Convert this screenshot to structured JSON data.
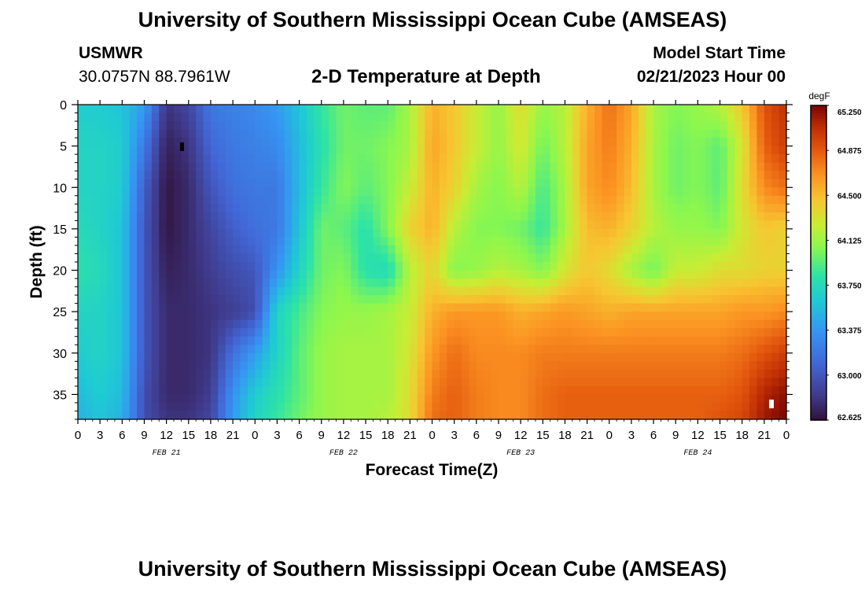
{
  "titles": {
    "main": "University of Southern Mississippi Ocean Cube (AMSEAS)",
    "bottom_repeat": "University of Southern Mississippi Ocean Cube (AMSEAS)"
  },
  "station": {
    "name": "USMWR",
    "coords": "30.0757N  88.7961W"
  },
  "model": {
    "label": "Model Start Time",
    "value": "02/21/2023 Hour 00"
  },
  "chart_data": {
    "type": "heatmap",
    "title": "2-D Temperature at Depth",
    "xlabel": "Forecast Time(Z)",
    "ylabel": "Depth (ft)",
    "units": "degF",
    "x_tick_labels": [
      "0",
      "3",
      "6",
      "9",
      "12",
      "15",
      "18",
      "21",
      "0",
      "3",
      "6",
      "9",
      "12",
      "15",
      "18",
      "21",
      "0",
      "3",
      "6",
      "9",
      "12",
      "15",
      "18",
      "21",
      "0",
      "3",
      "6",
      "9",
      "12",
      "15",
      "18",
      "21",
      "0"
    ],
    "date_labels": [
      {
        "label": "FEB 21",
        "hour": 12
      },
      {
        "label": "FEB 22",
        "hour": 36
      },
      {
        "label": "FEB 23",
        "hour": 60
      },
      {
        "label": "FEB 24",
        "hour": 84
      }
    ],
    "xlim": [
      0,
      96
    ],
    "ylim": [
      0,
      38
    ],
    "y_ticks": [
      0,
      5,
      10,
      15,
      20,
      25,
      30,
      35
    ],
    "y_tick_labels": [
      "0",
      "5",
      "10",
      "15",
      "20",
      "25",
      "30",
      "35"
    ],
    "colorbar": {
      "min": 62.625,
      "max": 65.25,
      "tick_values": [
        65.25,
        64.875,
        64.5,
        64.125,
        63.75,
        63.375,
        63.0,
        62.625
      ],
      "tick_labels": [
        "65.250",
        "64.875",
        "64.500",
        "64.125",
        "63.750",
        "63.375",
        "63.000",
        "62.625"
      ]
    },
    "field": {
      "x_hours": [
        0,
        3,
        6,
        9,
        12,
        15,
        18,
        21,
        24,
        27,
        30,
        33,
        36,
        39,
        42,
        45,
        48,
        51,
        54,
        57,
        60,
        63,
        66,
        69,
        72,
        75,
        78,
        81,
        84,
        87,
        90,
        93,
        96
      ],
      "depths_ft": [
        0,
        5,
        10,
        15,
        20,
        25,
        30,
        35,
        38
      ],
      "temps_degF": [
        [
          63.65,
          63.65,
          63.6,
          63.4,
          62.8,
          62.9,
          63.2,
          63.25,
          63.3,
          63.4,
          63.6,
          63.85,
          64.0,
          63.95,
          63.95,
          64.15,
          64.55,
          64.45,
          64.25,
          64.1,
          64.35,
          64.1,
          64.2,
          64.55,
          64.8,
          64.6,
          64.15,
          64.05,
          64.1,
          64.2,
          64.45,
          64.9,
          65.05
        ],
        [
          63.7,
          63.7,
          63.65,
          63.2,
          62.7,
          62.8,
          63.1,
          63.2,
          63.25,
          63.3,
          63.55,
          63.8,
          64.0,
          64.0,
          64.05,
          64.15,
          64.6,
          64.45,
          64.25,
          64.1,
          64.3,
          64.0,
          64.2,
          64.6,
          64.75,
          64.55,
          64.15,
          64.0,
          64.05,
          63.95,
          64.3,
          64.85,
          65.0
        ],
        [
          63.7,
          63.7,
          63.65,
          63.05,
          62.65,
          62.75,
          63.0,
          63.15,
          63.2,
          63.2,
          63.55,
          63.85,
          64.05,
          63.95,
          64.05,
          64.25,
          64.55,
          64.4,
          64.15,
          64.05,
          64.2,
          63.9,
          64.15,
          64.6,
          64.7,
          64.5,
          64.15,
          64.0,
          64.05,
          63.95,
          64.35,
          64.7,
          64.8
        ],
        [
          63.75,
          63.7,
          63.6,
          63.0,
          62.65,
          62.75,
          62.9,
          63.05,
          63.15,
          63.2,
          63.6,
          64.0,
          63.95,
          63.8,
          64.05,
          64.4,
          64.55,
          64.2,
          64.05,
          64.05,
          64.0,
          63.85,
          64.15,
          64.5,
          64.55,
          64.4,
          64.2,
          64.1,
          64.1,
          64.05,
          64.3,
          64.45,
          64.4
        ],
        [
          63.8,
          63.75,
          63.6,
          63.0,
          62.7,
          62.75,
          62.85,
          62.95,
          63.0,
          63.35,
          63.7,
          64.0,
          64.05,
          63.8,
          63.75,
          64.2,
          64.4,
          64.05,
          64.1,
          64.2,
          64.15,
          64.05,
          64.3,
          64.45,
          64.35,
          64.15,
          64.0,
          64.25,
          64.25,
          64.35,
          64.35,
          64.4,
          64.4
        ],
        [
          63.7,
          63.7,
          63.6,
          63.0,
          62.75,
          62.75,
          62.8,
          62.85,
          62.95,
          63.7,
          63.9,
          64.05,
          64.1,
          64.1,
          64.15,
          64.25,
          64.55,
          64.65,
          64.65,
          64.65,
          64.55,
          64.6,
          64.65,
          64.6,
          64.55,
          64.6,
          64.6,
          64.6,
          64.6,
          64.6,
          64.65,
          64.65,
          64.7
        ],
        [
          63.65,
          63.7,
          63.6,
          63.0,
          62.75,
          62.75,
          62.8,
          63.15,
          63.4,
          63.7,
          63.95,
          64.1,
          64.15,
          64.15,
          64.15,
          64.3,
          64.65,
          64.8,
          64.7,
          64.7,
          64.7,
          64.75,
          64.75,
          64.75,
          64.75,
          64.75,
          64.75,
          64.75,
          64.75,
          64.75,
          64.8,
          64.9,
          65.0
        ],
        [
          63.55,
          63.65,
          63.55,
          62.95,
          62.75,
          62.75,
          62.85,
          63.35,
          63.65,
          63.8,
          63.95,
          64.1,
          64.15,
          64.15,
          64.15,
          64.35,
          64.75,
          64.85,
          64.75,
          64.7,
          64.7,
          64.8,
          64.85,
          64.85,
          64.85,
          64.85,
          64.85,
          64.85,
          64.85,
          64.85,
          64.9,
          65.1,
          65.2
        ],
        [
          63.5,
          63.6,
          63.5,
          62.95,
          62.8,
          62.8,
          62.9,
          63.4,
          63.7,
          63.85,
          64.0,
          64.1,
          64.15,
          64.15,
          64.2,
          64.35,
          64.8,
          64.85,
          64.75,
          64.7,
          64.7,
          64.8,
          64.85,
          64.85,
          64.85,
          64.85,
          64.85,
          64.85,
          64.85,
          64.9,
          64.95,
          65.15,
          65.25
        ]
      ]
    }
  }
}
